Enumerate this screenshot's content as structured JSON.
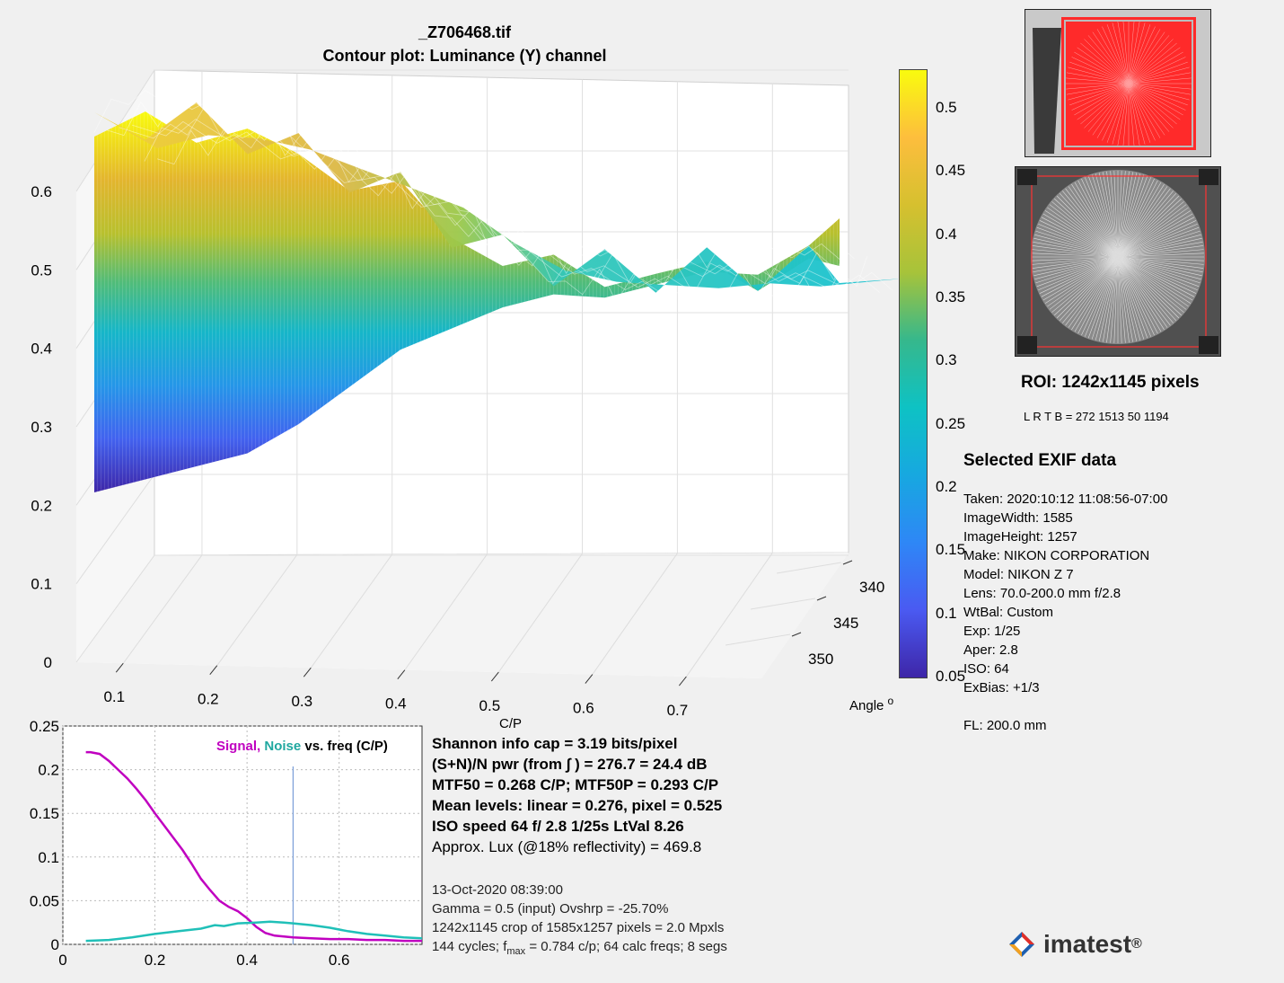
{
  "header": {
    "filename": "_Z706468.tif",
    "subtitle": "Contour plot:  Luminance (Y) channel"
  },
  "surface_plot": {
    "z_ticks": [
      "0",
      "0.1",
      "0.2",
      "0.3",
      "0.4",
      "0.5",
      "0.6"
    ],
    "x_ticks": [
      "0.1",
      "0.2",
      "0.3",
      "0.4",
      "0.5",
      "0.6",
      "0.7"
    ],
    "x_label": "C/P",
    "angle_ticks": [
      "340",
      "345",
      "350"
    ],
    "angle_label": "Angle",
    "angle_unit": "o"
  },
  "colorbar": {
    "ticks": [
      "0.5",
      "0.45",
      "0.4",
      "0.35",
      "0.3",
      "0.25",
      "0.2",
      "0.15",
      "0.1",
      "0.05"
    ],
    "colors": [
      "#f9fb0e",
      "#fdbe3d",
      "#d6c02f",
      "#a7c33a",
      "#36b88c",
      "#0ec2c4",
      "#17a8e0",
      "#2e87f6",
      "#4a5af2",
      "#3e26a8"
    ]
  },
  "roi": {
    "title": "ROI:  1242x1145 pixels",
    "lrtb": "L R  T B = 272 1513  50 1194"
  },
  "exif": {
    "heading": "Selected EXIF data",
    "lines": [
      "Taken: 2020:10:12 11:08:56-07:00",
      "ImageWidth:  1585",
      "ImageHeight:  1257",
      "Make:  NIKON CORPORATION",
      "Model: NIKON Z 7",
      "Lens:  70.0-200.0 mm f/2.8",
      "WtBal:  Custom",
      "Exp:   1/25",
      "Aper:  2.8",
      "ISO:   64",
      "ExBias:  +1/3",
      "",
      "FL:  200.0 mm"
    ]
  },
  "stats": {
    "shannon": "Shannon info cap =  3.19 bits/pixel",
    "snr": "(S+N)/N pwr (from ∫ ) = 276.7 = 24.4 dB",
    "mtf": "MTF50 = 0.268 C/P;  MTF50P = 0.293 C/P",
    "mean": "Mean levels:  linear = 0.276,  pixel = 0.525",
    "iso": "ISO speed  64   f/ 2.8    1/25s   LtVal 8.26",
    "lux": "Approx. Lux (@18% reflectivity) = 469.8",
    "date": "13-Oct-2020 08:39:00",
    "gamma": "Gamma = 0.5 (input)  Ovshrp = -25.70%",
    "crop": "1242x1145 crop of 1585x1257 pixels = 2.0 Mpxls",
    "cycles_prefix": "144 cycles; f",
    "cycles_sub": "max",
    "cycles_suffix": " = 0.784 c/p;  64 calc freqs;  8 segs"
  },
  "logo": {
    "text": "imatest",
    "mark": "®"
  },
  "chart_data": [
    {
      "type": "surface",
      "title": "_Z706468.tif",
      "subtitle": "Contour plot:  Luminance (Y) channel",
      "xlabel": "C/P",
      "ylabel": "Angle o",
      "xlim": [
        0.05,
        0.78
      ],
      "ylim": [
        337,
        353
      ],
      "zlim": [
        0,
        0.6
      ],
      "colormap": "parula",
      "color_range": [
        0.05,
        0.53
      ],
      "x": [
        0.05,
        0.1,
        0.15,
        0.2,
        0.25,
        0.3,
        0.35,
        0.4,
        0.45,
        0.5,
        0.55,
        0.6,
        0.65,
        0.7,
        0.75,
        0.78
      ],
      "near_edge_z": [
        0.08,
        0.09,
        0.1,
        0.11,
        0.14,
        0.18,
        0.22,
        0.24,
        0.26,
        0.27,
        0.26,
        0.27,
        0.28,
        0.27,
        0.3,
        0.33
      ],
      "far_edge_z": [
        0.52,
        0.53,
        0.52,
        0.5,
        0.47,
        0.44,
        0.41,
        0.36,
        0.32,
        0.3,
        0.29,
        0.28,
        0.28,
        0.27,
        0.27,
        0.27
      ]
    },
    {
      "type": "line",
      "title": "Signal, Noise vs. freq (C/P)",
      "xlim": [
        0,
        0.78
      ],
      "ylim": [
        0,
        0.25
      ],
      "x_ticks": [
        "0",
        "0.2",
        "0.4",
        "0.6"
      ],
      "y_ticks": [
        "0",
        "0.05",
        "0.1",
        "0.15",
        "0.2",
        "0.25"
      ],
      "legend_signal": "Signal,",
      "legend_noise": "Noise",
      "legend_rest": "vs. freq (C/P)",
      "vline_x": 0.5,
      "series": [
        {
          "name": "Signal",
          "color": "#c000c0",
          "x": [
            0.05,
            0.06,
            0.08,
            0.1,
            0.12,
            0.14,
            0.16,
            0.18,
            0.2,
            0.22,
            0.24,
            0.26,
            0.28,
            0.3,
            0.32,
            0.34,
            0.36,
            0.38,
            0.4,
            0.42,
            0.44,
            0.46,
            0.48,
            0.5,
            0.54,
            0.58,
            0.62,
            0.66,
            0.7,
            0.74,
            0.78
          ],
          "y": [
            0.22,
            0.22,
            0.218,
            0.21,
            0.2,
            0.19,
            0.178,
            0.165,
            0.15,
            0.136,
            0.122,
            0.108,
            0.092,
            0.075,
            0.062,
            0.05,
            0.043,
            0.038,
            0.03,
            0.02,
            0.013,
            0.01,
            0.009,
            0.008,
            0.007,
            0.006,
            0.006,
            0.005,
            0.005,
            0.004,
            0.004
          ]
        },
        {
          "name": "Noise",
          "color": "#20c0b8",
          "x": [
            0.05,
            0.1,
            0.15,
            0.2,
            0.25,
            0.3,
            0.33,
            0.35,
            0.38,
            0.42,
            0.45,
            0.48,
            0.5,
            0.54,
            0.58,
            0.62,
            0.66,
            0.7,
            0.74,
            0.78
          ],
          "y": [
            0.004,
            0.005,
            0.008,
            0.012,
            0.015,
            0.018,
            0.022,
            0.021,
            0.024,
            0.025,
            0.026,
            0.025,
            0.024,
            0.022,
            0.019,
            0.015,
            0.012,
            0.01,
            0.008,
            0.007
          ]
        }
      ]
    }
  ]
}
